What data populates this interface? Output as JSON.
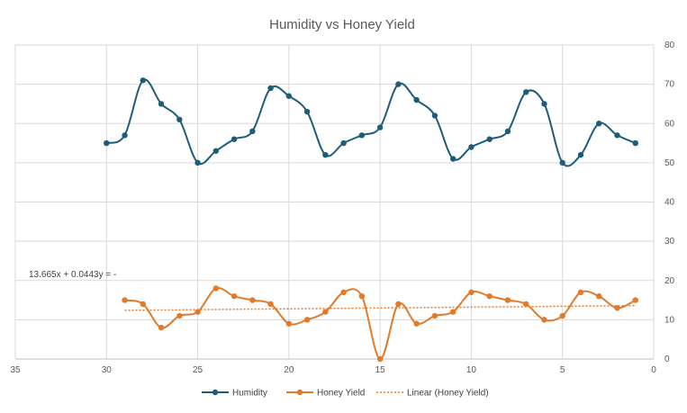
{
  "chart_data": {
    "type": "line",
    "title": "Humidity vs Honey Yield",
    "x_axis": {
      "min": 0,
      "max": 35,
      "step": 5,
      "reversed": true,
      "ticks": [
        "35",
        "30",
        "25",
        "20",
        "15",
        "10",
        "5",
        "0"
      ]
    },
    "y_axis": {
      "min": 0,
      "max": 80,
      "step": 10,
      "position": "right",
      "ticks": [
        "0",
        "10",
        "20",
        "30",
        "40",
        "50",
        "60",
        "70",
        "80"
      ]
    },
    "grid": true,
    "legend_position": "bottom",
    "series": [
      {
        "name": "Humidity",
        "color": "#1f5c7a",
        "smooth": true,
        "x": [
          30,
          29,
          28,
          27,
          26,
          25,
          24,
          23,
          22,
          21,
          20,
          19,
          18,
          17,
          16,
          15,
          14,
          13,
          12,
          11,
          10,
          9,
          8,
          7,
          6,
          5,
          4,
          3,
          2,
          1
        ],
        "values": [
          55,
          57,
          71,
          65,
          61,
          50,
          53,
          56,
          58,
          69,
          67,
          63,
          52,
          55,
          57,
          59,
          70,
          66,
          62,
          51,
          54,
          56,
          58,
          68,
          65,
          50,
          52,
          60,
          57,
          55
        ]
      },
      {
        "name": "Honey Yield",
        "color": "#e07b2c",
        "smooth": true,
        "x": [
          29,
          28,
          27,
          26,
          25,
          24,
          23,
          22,
          21,
          20,
          19,
          18,
          17,
          16,
          15,
          14,
          13,
          12,
          11,
          10,
          9,
          8,
          7,
          6,
          5,
          4,
          3,
          2,
          1
        ],
        "values": [
          15,
          14,
          8,
          11,
          12,
          18,
          16,
          15,
          14,
          9,
          10,
          12,
          17,
          16,
          0,
          14,
          9,
          11,
          12,
          17,
          16,
          15,
          14,
          10,
          11,
          17,
          16,
          13,
          15
        ]
      }
    ],
    "trendline": {
      "name": "Linear (Honey Yield)",
      "color": "#e07b2c",
      "style": "dotted",
      "x_range": [
        29,
        1
      ],
      "y_values": [
        12.4,
        13.6
      ]
    },
    "trendline_label": "13.665x + 0.0443y = -"
  }
}
